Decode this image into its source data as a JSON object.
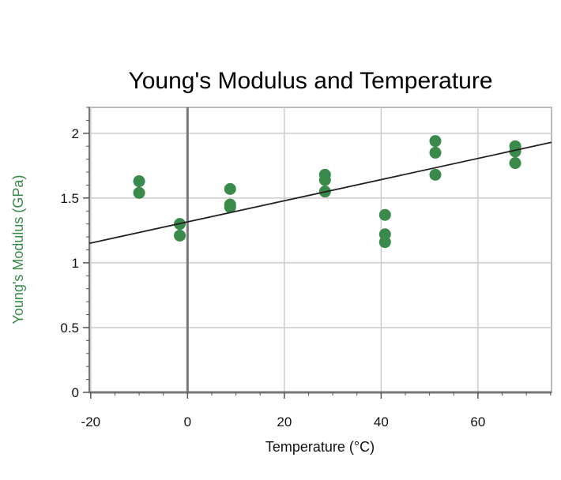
{
  "chart_data": {
    "type": "scatter",
    "title": "Young's Modulus and Temperature",
    "xlabel": "Temperature (°C)",
    "ylabel": "Young's Modulus (GPa)",
    "xlim": [
      -20.3,
      75.2
    ],
    "ylim": [
      0,
      2.2
    ],
    "xticks": [
      -20,
      0,
      20,
      40,
      60
    ],
    "xtick_labels": [
      "-20",
      "0",
      "20",
      "40",
      "60"
    ],
    "yticks": [
      0,
      0.5,
      1,
      1.5,
      2
    ],
    "ytick_labels": [
      "0",
      "0.5",
      "1",
      "1.5",
      "2"
    ],
    "grid": true,
    "point_color": "#3a8a4c",
    "points": [
      {
        "x": -10,
        "y": 1.63
      },
      {
        "x": -10,
        "y": 1.54
      },
      {
        "x": -1.6,
        "y": 1.3
      },
      {
        "x": -1.6,
        "y": 1.21
      },
      {
        "x": 8.8,
        "y": 1.57
      },
      {
        "x": 8.8,
        "y": 1.45
      },
      {
        "x": 8.8,
        "y": 1.43
      },
      {
        "x": 28.4,
        "y": 1.68
      },
      {
        "x": 28.4,
        "y": 1.64
      },
      {
        "x": 28.4,
        "y": 1.55
      },
      {
        "x": 40.8,
        "y": 1.37
      },
      {
        "x": 40.8,
        "y": 1.22
      },
      {
        "x": 40.8,
        "y": 1.16
      },
      {
        "x": 51.2,
        "y": 1.94
      },
      {
        "x": 51.2,
        "y": 1.85
      },
      {
        "x": 51.2,
        "y": 1.68
      },
      {
        "x": 67.7,
        "y": 1.9
      },
      {
        "x": 67.7,
        "y": 1.86
      },
      {
        "x": 67.7,
        "y": 1.77
      }
    ],
    "trendline": {
      "x": [
        -20.3,
        75.2
      ],
      "y": [
        1.15,
        1.93
      ]
    }
  }
}
